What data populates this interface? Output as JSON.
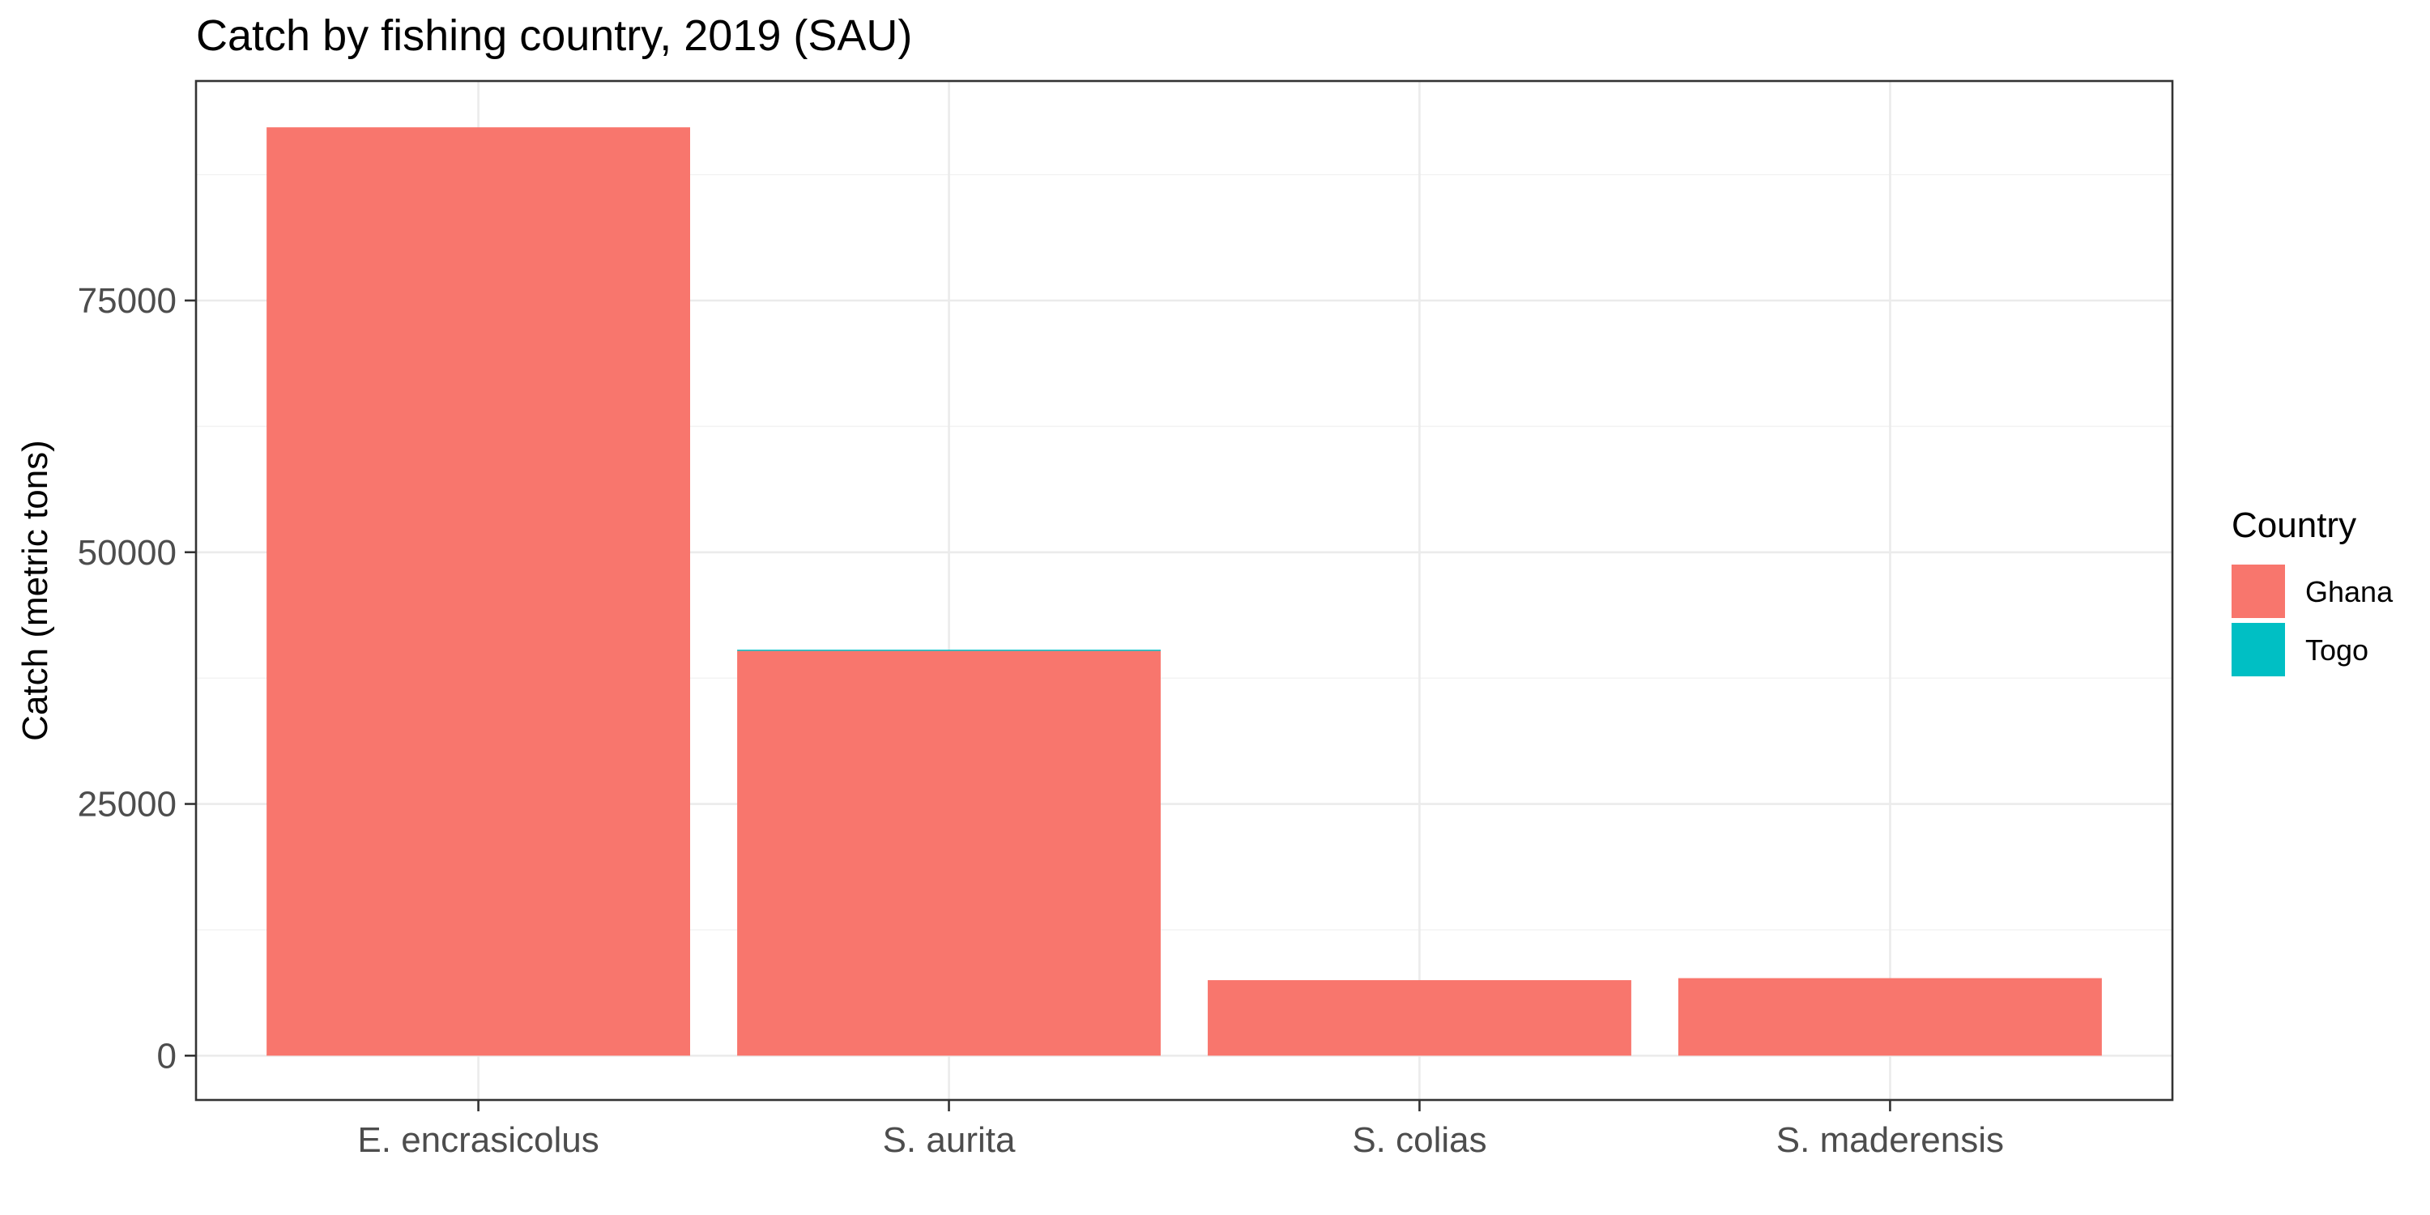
{
  "chart_data": {
    "type": "bar",
    "stacked": true,
    "title": "Catch by fishing country, 2019 (SAU)",
    "xlabel": "",
    "ylabel": "Catch (metric tons)",
    "categories": [
      "E. encrasicolus",
      "S. aurita",
      "S. colias",
      "S. maderensis"
    ],
    "series": [
      {
        "name": "Ghana",
        "color": "#F8766D",
        "values": [
          92200,
          40200,
          7500,
          7700
        ]
      },
      {
        "name": "Togo",
        "color": "#00BFC4",
        "values": [
          0,
          120,
          0,
          0
        ]
      }
    ],
    "ylim": [
      -4400,
      96800
    ],
    "yticks": [
      0,
      25000,
      50000,
      75000
    ],
    "yminor": [
      12500,
      37500,
      62500,
      87500
    ],
    "grid": true,
    "legend": {
      "title": "Country",
      "position": "right"
    }
  }
}
